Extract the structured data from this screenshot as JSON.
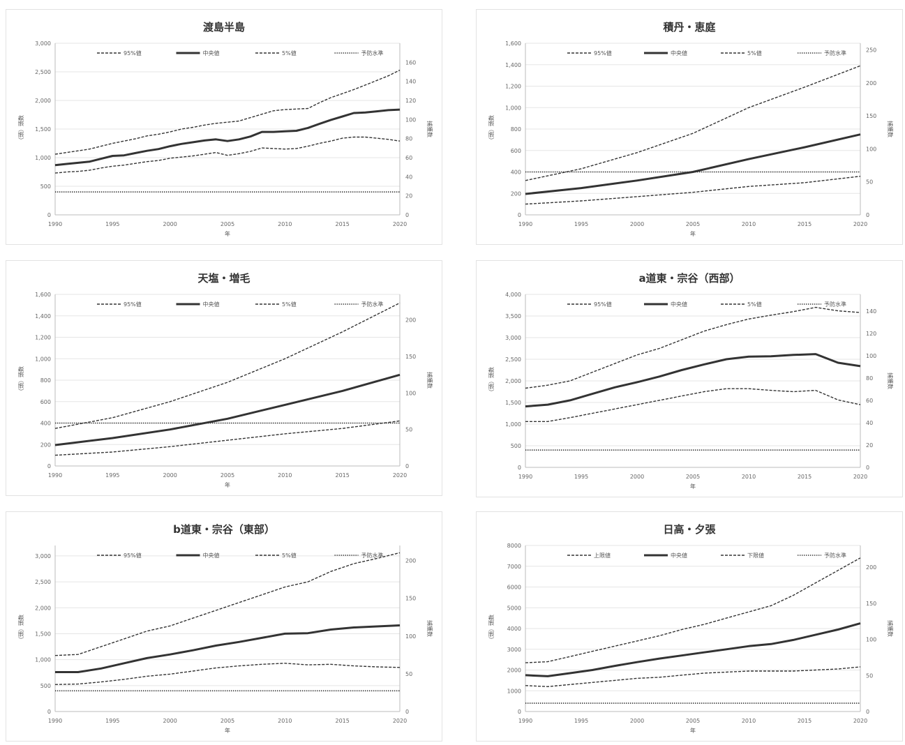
{
  "chart_data": [
    {
      "type": "line",
      "title": "渡島半島",
      "xlabel": "年",
      "ylabel": "（頭）頭数",
      "y2label": "捕獲数",
      "xlim": [
        1990,
        2020
      ],
      "xticks": [
        1990,
        1995,
        2000,
        2005,
        2010,
        2015,
        2020
      ],
      "ylim": [
        0,
        3000
      ],
      "yticks": [
        0,
        500,
        1000,
        1500,
        2000,
        2500,
        3000
      ],
      "ytick_labels": [
        "0",
        "500",
        "1,000",
        "1,500",
        "2,000",
        "2,500",
        "3,000"
      ],
      "y2lim": [
        0,
        180
      ],
      "y2ticks": [
        0,
        20,
        40,
        60,
        80,
        100,
        120,
        140,
        160
      ],
      "legend": [
        "95%値",
        "中央値",
        "5%値",
        "予防水準"
      ],
      "x": [
        1990,
        1991,
        1992,
        1993,
        1994,
        1995,
        1996,
        1997,
        1998,
        1999,
        2000,
        2001,
        2002,
        2003,
        2004,
        2005,
        2006,
        2007,
        2008,
        2009,
        2010,
        2011,
        2012,
        2013,
        2014,
        2015,
        2016,
        2017,
        2018,
        2019,
        2020
      ],
      "series": [
        {
          "name": "95%値",
          "style": "dashed",
          "values": [
            1060,
            1090,
            1120,
            1150,
            1200,
            1250,
            1290,
            1330,
            1380,
            1410,
            1450,
            1500,
            1530,
            1570,
            1600,
            1620,
            1640,
            1700,
            1760,
            1820,
            1840,
            1850,
            1860,
            1960,
            2050,
            2120,
            2190,
            2270,
            2350,
            2430,
            2530
          ]
        },
        {
          "name": "中央値",
          "style": "solid",
          "values": [
            870,
            890,
            910,
            930,
            980,
            1030,
            1040,
            1080,
            1120,
            1150,
            1200,
            1240,
            1270,
            1300,
            1320,
            1290,
            1320,
            1370,
            1450,
            1450,
            1460,
            1470,
            1520,
            1590,
            1660,
            1720,
            1780,
            1790,
            1810,
            1830,
            1840
          ]
        },
        {
          "name": "5%値",
          "style": "dashed",
          "values": [
            730,
            750,
            760,
            780,
            820,
            850,
            870,
            900,
            930,
            950,
            990,
            1010,
            1030,
            1060,
            1090,
            1040,
            1070,
            1110,
            1170,
            1160,
            1150,
            1160,
            1200,
            1250,
            1290,
            1340,
            1360,
            1360,
            1340,
            1320,
            1290
          ]
        },
        {
          "name": "予防水準",
          "style": "dotted",
          "values": [
            400,
            400,
            400,
            400,
            400,
            400,
            400,
            400,
            400,
            400,
            400,
            400,
            400,
            400,
            400,
            400,
            400,
            400,
            400,
            400,
            400,
            400,
            400,
            400,
            400,
            400,
            400,
            400,
            400,
            400,
            400
          ]
        }
      ]
    },
    {
      "type": "line",
      "title": "積丹・恵庭",
      "xlabel": "年",
      "ylabel": "（頭）頭数",
      "y2label": "捕獲数",
      "xlim": [
        1990,
        2020
      ],
      "xticks": [
        1990,
        1995,
        2000,
        2005,
        2010,
        2015,
        2020
      ],
      "ylim": [
        0,
        1600
      ],
      "yticks": [
        0,
        200,
        400,
        600,
        800,
        1000,
        1200,
        1400,
        1600
      ],
      "ytick_labels": [
        "0",
        "200",
        "400",
        "600",
        "800",
        "1,000",
        "1,200",
        "1,400",
        "1,600"
      ],
      "y2lim": [
        0,
        260
      ],
      "y2ticks": [
        0,
        50,
        100,
        150,
        200,
        250
      ],
      "legend": [
        "95%値",
        "中央値",
        "5%値",
        "予防水準"
      ],
      "x": [
        1990,
        1995,
        2000,
        2005,
        2010,
        2015,
        2020
      ],
      "series": [
        {
          "name": "95%値",
          "style": "dashed",
          "values": [
            320,
            430,
            580,
            760,
            1000,
            1190,
            1390
          ]
        },
        {
          "name": "中央値",
          "style": "solid",
          "values": [
            195,
            250,
            320,
            400,
            520,
            630,
            750
          ]
        },
        {
          "name": "5%値",
          "style": "dashed",
          "values": [
            100,
            130,
            170,
            210,
            265,
            300,
            360
          ]
        },
        {
          "name": "予防水準",
          "style": "dotted",
          "values": [
            400,
            400,
            400,
            400,
            400,
            400,
            400
          ]
        }
      ]
    },
    {
      "type": "line",
      "title": "天塩・増毛",
      "xlabel": "年",
      "ylabel": "（頭）頭数",
      "y2label": "捕獲数",
      "xlim": [
        1990,
        2020
      ],
      "xticks": [
        1990,
        1995,
        2000,
        2005,
        2010,
        2015,
        2020
      ],
      "ylim": [
        0,
        1600
      ],
      "yticks": [
        0,
        200,
        400,
        600,
        800,
        1000,
        1200,
        1400,
        1600
      ],
      "ytick_labels": [
        "0",
        "200",
        "400",
        "600",
        "800",
        "1,000",
        "1,200",
        "1,400",
        "1,600"
      ],
      "y2lim": [
        0,
        235
      ],
      "y2ticks": [
        0,
        50,
        100,
        150,
        200
      ],
      "legend": [
        "95%値",
        "中央値",
        "5%値",
        "予防水準"
      ],
      "x": [
        1990,
        1995,
        2000,
        2005,
        2010,
        2015,
        2020
      ],
      "series": [
        {
          "name": "95%値",
          "style": "dashed",
          "values": [
            350,
            450,
            600,
            780,
            1000,
            1250,
            1520
          ]
        },
        {
          "name": "中央値",
          "style": "solid",
          "values": [
            195,
            260,
            340,
            440,
            570,
            700,
            850
          ]
        },
        {
          "name": "5%値",
          "style": "dashed",
          "values": [
            100,
            130,
            180,
            240,
            300,
            350,
            420
          ]
        },
        {
          "name": "予防水準",
          "style": "dotted",
          "values": [
            400,
            400,
            400,
            400,
            400,
            400,
            400
          ]
        }
      ]
    },
    {
      "type": "line",
      "title": "a道東・宗谷（西部）",
      "xlabel": "年",
      "ylabel": "（頭）頭数",
      "y2label": "捕獲数",
      "xlim": [
        1990,
        2020
      ],
      "xticks": [
        1990,
        1995,
        2000,
        2005,
        2010,
        2015,
        2020
      ],
      "ylim": [
        0,
        4000
      ],
      "yticks": [
        0,
        500,
        1000,
        1500,
        2000,
        2500,
        3000,
        3500,
        4000
      ],
      "ytick_labels": [
        "0",
        "500",
        "1,000",
        "1,500",
        "2,000",
        "2,500",
        "3,000",
        "3,500",
        "4,000"
      ],
      "y2lim": [
        0,
        155
      ],
      "y2ticks": [
        0,
        20,
        40,
        60,
        80,
        100,
        120,
        140
      ],
      "legend": [
        "95%値",
        "中央値",
        "5%値",
        "予防水準"
      ],
      "x": [
        1990,
        1992,
        1994,
        1996,
        1998,
        2000,
        2002,
        2004,
        2006,
        2008,
        2010,
        2012,
        2014,
        2016,
        2018,
        2020
      ],
      "series": [
        {
          "name": "95%値",
          "style": "dashed",
          "values": [
            1830,
            1900,
            2000,
            2200,
            2400,
            2600,
            2750,
            2950,
            3150,
            3300,
            3430,
            3520,
            3600,
            3700,
            3620,
            3580
          ]
        },
        {
          "name": "中央値",
          "style": "solid",
          "values": [
            1410,
            1450,
            1550,
            1700,
            1850,
            1970,
            2100,
            2250,
            2380,
            2500,
            2560,
            2570,
            2600,
            2620,
            2420,
            2340
          ]
        },
        {
          "name": "5%値",
          "style": "dashed",
          "values": [
            1060,
            1060,
            1150,
            1250,
            1350,
            1450,
            1550,
            1650,
            1750,
            1820,
            1820,
            1780,
            1750,
            1780,
            1560,
            1450
          ]
        },
        {
          "name": "予防水準",
          "style": "dotted",
          "values": [
            400,
            400,
            400,
            400,
            400,
            400,
            400,
            400,
            400,
            400,
            400,
            400,
            400,
            400,
            400,
            400
          ]
        }
      ]
    },
    {
      "type": "line",
      "title": "b道東・宗谷（東部）",
      "xlabel": "年",
      "ylabel": "（頭）頭数",
      "y2label": "捕獲数",
      "xlim": [
        1990,
        2020
      ],
      "xticks": [
        1990,
        1995,
        2000,
        2005,
        2010,
        2015,
        2020
      ],
      "ylim": [
        0,
        3200
      ],
      "yticks": [
        0,
        500,
        1000,
        1500,
        2000,
        2500,
        3000
      ],
      "ytick_labels": [
        "0",
        "500",
        "1,000",
        "1,500",
        "2,000",
        "2,500",
        "3,000"
      ],
      "y2lim": [
        0,
        220
      ],
      "y2ticks": [
        0,
        50,
        100,
        150,
        200
      ],
      "legend": [
        "95%値",
        "中央値",
        "5%値",
        "予防水準"
      ],
      "x": [
        1990,
        1992,
        1994,
        1996,
        1998,
        2000,
        2002,
        2004,
        2006,
        2008,
        2010,
        2012,
        2014,
        2016,
        2018,
        2020
      ],
      "series": [
        {
          "name": "95%値",
          "style": "dashed",
          "values": [
            1080,
            1100,
            1250,
            1400,
            1550,
            1650,
            1800,
            1950,
            2100,
            2250,
            2400,
            2500,
            2700,
            2850,
            2950,
            3060
          ]
        },
        {
          "name": "中央値",
          "style": "solid",
          "values": [
            760,
            760,
            830,
            930,
            1030,
            1100,
            1180,
            1270,
            1340,
            1420,
            1500,
            1510,
            1580,
            1620,
            1640,
            1660
          ]
        },
        {
          "name": "5%値",
          "style": "dashed",
          "values": [
            520,
            530,
            570,
            620,
            680,
            720,
            780,
            840,
            880,
            910,
            930,
            900,
            910,
            880,
            860,
            850
          ]
        },
        {
          "name": "予防水準",
          "style": "dotted",
          "values": [
            400,
            400,
            400,
            400,
            400,
            400,
            400,
            400,
            400,
            400,
            400,
            400,
            400,
            400,
            400,
            400
          ]
        }
      ]
    },
    {
      "type": "line",
      "title": "日高・夕張",
      "xlabel": "年",
      "ylabel": "（頭）頭数",
      "y2label": "捕獲数",
      "xlim": [
        1990,
        2020
      ],
      "xticks": [
        1990,
        1995,
        2000,
        2005,
        2010,
        2015,
        2020
      ],
      "ylim": [
        0,
        8000
      ],
      "yticks": [
        0,
        1000,
        2000,
        3000,
        4000,
        5000,
        6000,
        7000,
        8000
      ],
      "ytick_labels": [
        "0",
        "1000",
        "2000",
        "3000",
        "4000",
        "5000",
        "6000",
        "7000",
        "8000"
      ],
      "y2lim": [
        0,
        230
      ],
      "y2ticks": [
        0,
        50,
        100,
        150,
        200
      ],
      "legend": [
        "上限値",
        "中央値",
        "下限値",
        "予防水準"
      ],
      "x": [
        1990,
        1992,
        1994,
        1996,
        1998,
        2000,
        2002,
        2004,
        2006,
        2008,
        2010,
        2012,
        2014,
        2016,
        2018,
        2020
      ],
      "series": [
        {
          "name": "上限値",
          "style": "dashed",
          "values": [
            2350,
            2400,
            2650,
            2900,
            3150,
            3400,
            3650,
            3950,
            4200,
            4500,
            4800,
            5100,
            5600,
            6200,
            6800,
            7400
          ]
        },
        {
          "name": "中央値",
          "style": "solid",
          "values": [
            1750,
            1700,
            1850,
            2000,
            2200,
            2380,
            2550,
            2700,
            2850,
            3000,
            3150,
            3250,
            3450,
            3700,
            3950,
            4250
          ]
        },
        {
          "name": "下限値",
          "style": "dashed",
          "values": [
            1250,
            1200,
            1300,
            1400,
            1500,
            1600,
            1650,
            1750,
            1850,
            1900,
            1950,
            1950,
            1950,
            2000,
            2050,
            2150
          ]
        },
        {
          "name": "予防水準",
          "style": "dotted",
          "values": [
            400,
            400,
            400,
            400,
            400,
            400,
            400,
            400,
            400,
            400,
            400,
            400,
            400,
            400,
            400,
            400
          ]
        }
      ]
    }
  ],
  "colors": {
    "line": "#333333",
    "grid": "#e5e5e5",
    "text": "#666666"
  }
}
